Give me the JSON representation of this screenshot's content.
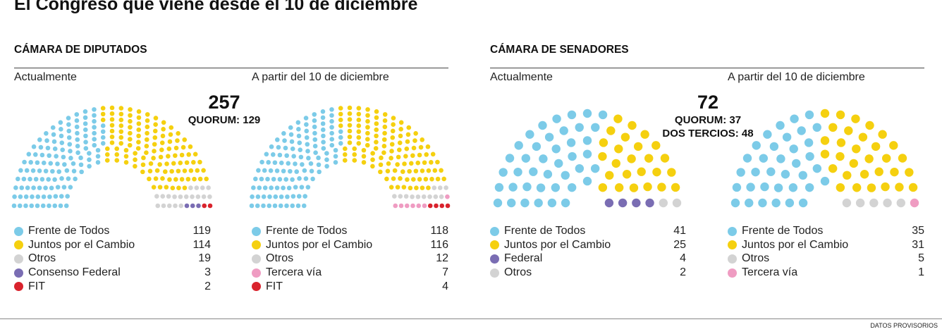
{
  "title": "El Congreso que viene desde el 10 de diciembre",
  "footer": "DATOS PROVISORIOS",
  "colors": {
    "frente": "#7ccbe8",
    "juntos": "#f5d00f",
    "otros": "#d3d3d3",
    "consenso": "#7a6db3",
    "fit": "#d9232d",
    "tercera": "#ef9cc2",
    "federal": "#7a6db3"
  },
  "diputados": {
    "heading": "CÁMARA DE DIPUTADOS",
    "current_label": "Actualmente",
    "future_label": "A partir del 10 de diciembre",
    "total": "257",
    "quorum": "QUORUM: 129"
  },
  "senadores": {
    "heading": "CÁMARA DE SENADORES",
    "current_label": "Actualmente",
    "future_label": "A partir del 10 de diciembre",
    "total": "72",
    "quorum": "QUORUM: 37",
    "two_thirds": "DOS TERCIOS: 48"
  },
  "chart_data": [
    {
      "type": "parliament",
      "chamber": "Cámara de Diputados",
      "period": "Actualmente",
      "total": 257,
      "series": [
        {
          "name": "Frente de Todos",
          "value": 119,
          "color": "#7ccbe8"
        },
        {
          "name": "Juntos por el Cambio",
          "value": 114,
          "color": "#f5d00f"
        },
        {
          "name": "Otros",
          "value": 19,
          "color": "#d3d3d3"
        },
        {
          "name": "Consenso Federal",
          "value": 3,
          "color": "#7a6db3"
        },
        {
          "name": "FIT",
          "value": 2,
          "color": "#d9232d"
        }
      ]
    },
    {
      "type": "parliament",
      "chamber": "Cámara de Diputados",
      "period": "A partir del 10 de diciembre",
      "total": 257,
      "series": [
        {
          "name": "Frente de Todos",
          "value": 118,
          "color": "#7ccbe8"
        },
        {
          "name": "Juntos por el Cambio",
          "value": 116,
          "color": "#f5d00f"
        },
        {
          "name": "Otros",
          "value": 12,
          "color": "#d3d3d3"
        },
        {
          "name": "Tercera vía",
          "value": 7,
          "color": "#ef9cc2"
        },
        {
          "name": "FIT",
          "value": 4,
          "color": "#d9232d"
        }
      ]
    },
    {
      "type": "parliament",
      "chamber": "Cámara de Senadores",
      "period": "Actualmente",
      "total": 72,
      "series": [
        {
          "name": "Frente de Todos",
          "value": 41,
          "color": "#7ccbe8"
        },
        {
          "name": "Juntos por el Cambio",
          "value": 25,
          "color": "#f5d00f"
        },
        {
          "name": "Federal",
          "value": 4,
          "color": "#7a6db3"
        },
        {
          "name": "Otros",
          "value": 2,
          "color": "#d3d3d3"
        }
      ]
    },
    {
      "type": "parliament",
      "chamber": "Cámara de Senadores",
      "period": "A partir del 10 de diciembre",
      "total": 72,
      "series": [
        {
          "name": "Frente de Todos",
          "value": 35,
          "color": "#7ccbe8"
        },
        {
          "name": "Juntos por el Cambio",
          "value": 31,
          "color": "#f5d00f"
        },
        {
          "name": "Otros",
          "value": 5,
          "color": "#d3d3d3"
        },
        {
          "name": "Tercera vía",
          "value": 1,
          "color": "#ef9cc2"
        }
      ]
    }
  ]
}
